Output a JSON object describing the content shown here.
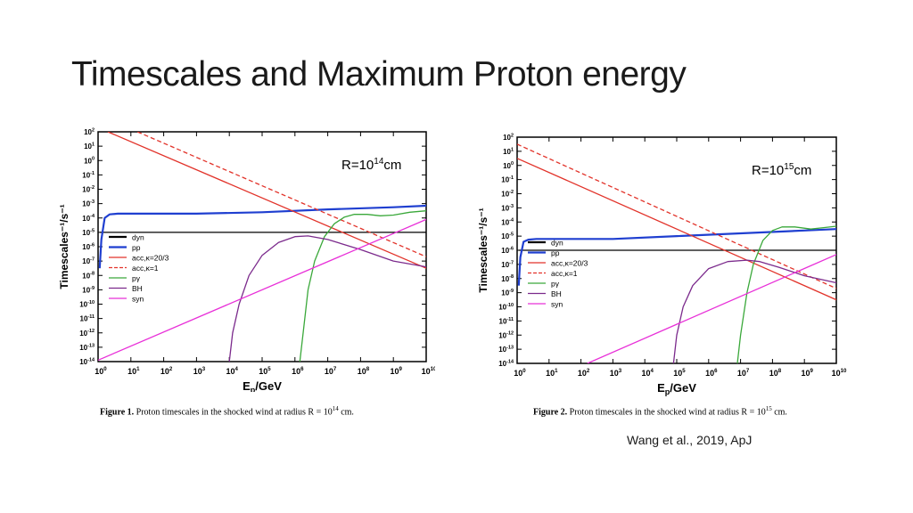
{
  "slide": {
    "title": "Timescales and Maximum Proton energy",
    "citation": "Wang et al., 2019, ApJ"
  },
  "figures": [
    {
      "caption_label": "Figure 1.",
      "caption_text": "Proton timescales in the shocked wind at radius R = 10",
      "caption_exp": "14",
      "caption_tail": " cm."
    },
    {
      "caption_label": "Figure 2.",
      "caption_text": "Proton timescales in the shocked wind at radius R = 10",
      "caption_exp": "15",
      "caption_tail": " cm."
    }
  ],
  "chart_data": [
    {
      "type": "line",
      "annotation": {
        "base": "R=10",
        "exp": "14",
        "unit": "cm"
      },
      "xlabel": {
        "main": "E",
        "sub": "p",
        "rest": "/GeV"
      },
      "ylabel": "Timescales⁻¹/s⁻¹",
      "x_log_range": [
        0,
        10
      ],
      "y_log_range": [
        -14,
        2
      ],
      "x_tick_exponents": [
        0,
        1,
        2,
        3,
        4,
        5,
        6,
        7,
        8,
        9,
        10
      ],
      "y_tick_exponents": [
        2,
        1,
        0,
        -1,
        -2,
        -3,
        -4,
        -5,
        -6,
        -7,
        -8,
        -9,
        -10,
        -11,
        -12,
        -13,
        -14
      ],
      "log_scale": true,
      "grid": false,
      "legend_position": "left-middle",
      "series": [
        {
          "name": "dyn",
          "color": "#000000",
          "dash": false,
          "log_points": [
            [
              0.05,
              -5
            ],
            [
              10,
              -5
            ]
          ]
        },
        {
          "name": "pp",
          "color": "#1f3fd0",
          "dash": false,
          "log_points": [
            [
              0.05,
              -7.5
            ],
            [
              0.1,
              -5.5
            ],
            [
              0.2,
              -4.0
            ],
            [
              0.35,
              -3.75
            ],
            [
              0.6,
              -3.7
            ],
            [
              1,
              -3.7
            ],
            [
              3,
              -3.7
            ],
            [
              5,
              -3.6
            ],
            [
              7,
              -3.4
            ],
            [
              9,
              -3.25
            ],
            [
              10,
              -3.15
            ]
          ]
        },
        {
          "name": "acc,κ=20/3",
          "color": "#e2332a",
          "dash": false,
          "log_points": [
            [
              0.3,
              2
            ],
            [
              10,
              -7.5
            ]
          ]
        },
        {
          "name": "acc,κ=1",
          "color": "#e2332a",
          "dash": true,
          "log_points": [
            [
              1.2,
              2
            ],
            [
              10,
              -6.7
            ]
          ]
        },
        {
          "name": "pγ",
          "color": "#3aa83a",
          "dash": false,
          "log_points": [
            [
              6.15,
              -14
            ],
            [
              6.25,
              -12
            ],
            [
              6.4,
              -9
            ],
            [
              6.6,
              -7
            ],
            [
              6.9,
              -5.3
            ],
            [
              7.2,
              -4.4
            ],
            [
              7.5,
              -3.95
            ],
            [
              7.8,
              -3.75
            ],
            [
              8.2,
              -3.75
            ],
            [
              8.6,
              -3.85
            ],
            [
              9,
              -3.8
            ],
            [
              9.5,
              -3.6
            ],
            [
              10,
              -3.5
            ]
          ]
        },
        {
          "name": "BH",
          "color": "#7b2a8c",
          "dash": false,
          "log_points": [
            [
              4.0,
              -14
            ],
            [
              4.1,
              -12
            ],
            [
              4.3,
              -10
            ],
            [
              4.6,
              -8
            ],
            [
              5.0,
              -6.6
            ],
            [
              5.5,
              -5.7
            ],
            [
              6.0,
              -5.3
            ],
            [
              6.4,
              -5.25
            ],
            [
              7.0,
              -5.5
            ],
            [
              8.0,
              -6.2
            ],
            [
              9.0,
              -7.0
            ],
            [
              10,
              -7.4
            ]
          ]
        },
        {
          "name": "syn",
          "color": "#e830d8",
          "dash": false,
          "log_points": [
            [
              0,
              -13.9
            ],
            [
              10,
              -4.1
            ]
          ]
        }
      ]
    },
    {
      "type": "line",
      "annotation": {
        "base": "R=10",
        "exp": "15",
        "unit": "cm"
      },
      "xlabel": {
        "main": "E",
        "sub": "p",
        "rest": "/GeV"
      },
      "ylabel": "Timescales⁻¹/s⁻¹",
      "x_log_range": [
        0,
        10
      ],
      "y_log_range": [
        -14,
        2
      ],
      "x_tick_exponents": [
        0,
        1,
        2,
        3,
        4,
        5,
        6,
        7,
        8,
        9,
        10
      ],
      "y_tick_exponents": [
        2,
        1,
        0,
        -1,
        -2,
        -3,
        -4,
        -5,
        -6,
        -7,
        -8,
        -9,
        -10,
        -11,
        -12,
        -13,
        -14
      ],
      "log_scale": true,
      "grid": false,
      "legend_position": "left-middle",
      "series": [
        {
          "name": "dyn",
          "color": "#000000",
          "dash": false,
          "log_points": [
            [
              0.05,
              -6
            ],
            [
              10,
              -6
            ]
          ]
        },
        {
          "name": "pp",
          "color": "#1f3fd0",
          "dash": false,
          "log_points": [
            [
              0.05,
              -8.5
            ],
            [
              0.1,
              -6.5
            ],
            [
              0.2,
              -5.4
            ],
            [
              0.35,
              -5.25
            ],
            [
              0.6,
              -5.2
            ],
            [
              1,
              -5.2
            ],
            [
              3,
              -5.2
            ],
            [
              5,
              -5.0
            ],
            [
              7,
              -4.8
            ],
            [
              9,
              -4.6
            ],
            [
              10,
              -4.5
            ]
          ]
        },
        {
          "name": "acc,κ=20/3",
          "color": "#e2332a",
          "dash": false,
          "log_points": [
            [
              0,
              0.5
            ],
            [
              10,
              -9.5
            ]
          ]
        },
        {
          "name": "acc,κ=1",
          "color": "#e2332a",
          "dash": true,
          "log_points": [
            [
              0,
              1.5
            ],
            [
              10,
              -8.7
            ]
          ]
        },
        {
          "name": "pγ",
          "color": "#3aa83a",
          "dash": false,
          "log_points": [
            [
              6.9,
              -14
            ],
            [
              7.0,
              -12
            ],
            [
              7.2,
              -9
            ],
            [
              7.4,
              -7
            ],
            [
              7.7,
              -5.3
            ],
            [
              8.0,
              -4.6
            ],
            [
              8.3,
              -4.35
            ],
            [
              8.7,
              -4.35
            ],
            [
              9.2,
              -4.5
            ],
            [
              9.6,
              -4.4
            ],
            [
              10,
              -4.3
            ]
          ]
        },
        {
          "name": "BH",
          "color": "#7b2a8c",
          "dash": false,
          "log_points": [
            [
              4.9,
              -14
            ],
            [
              5.0,
              -12
            ],
            [
              5.2,
              -10
            ],
            [
              5.5,
              -8.5
            ],
            [
              6.0,
              -7.3
            ],
            [
              6.6,
              -6.8
            ],
            [
              7.2,
              -6.7
            ],
            [
              7.6,
              -6.8
            ],
            [
              8.2,
              -7.2
            ],
            [
              9.0,
              -7.8
            ],
            [
              10,
              -8.3
            ]
          ]
        },
        {
          "name": "syn",
          "color": "#e830d8",
          "dash": false,
          "log_points": [
            [
              2.2,
              -14
            ],
            [
              10,
              -6.3
            ]
          ]
        }
      ]
    }
  ]
}
